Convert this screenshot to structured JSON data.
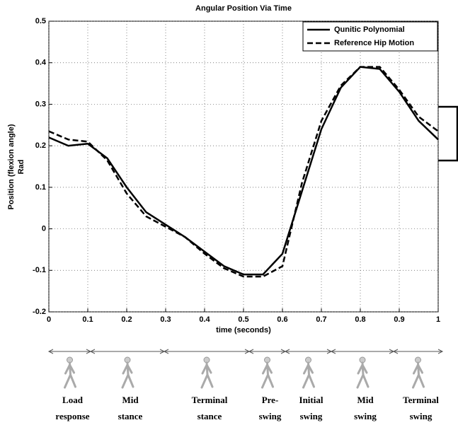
{
  "chart_data": {
    "type": "line",
    "title": "Angular Position Via Time",
    "xlabel": "time (seconds)",
    "ylabel": [
      "Position (flexion angle)",
      "Rad"
    ],
    "x": [
      0,
      0.05,
      0.1,
      0.15,
      0.2,
      0.25,
      0.3,
      0.35,
      0.4,
      0.45,
      0.5,
      0.55,
      0.6,
      0.65,
      0.7,
      0.75,
      0.8,
      0.85,
      0.9,
      0.95,
      1
    ],
    "series": [
      {
        "name": "Qunitic Polynomial",
        "color": "#000000",
        "dash": "solid",
        "values": [
          0.22,
          0.2,
          0.205,
          0.17,
          0.1,
          0.04,
          0.01,
          -0.02,
          -0.055,
          -0.09,
          -0.11,
          -0.11,
          -0.06,
          0.09,
          0.24,
          0.34,
          0.39,
          0.385,
          0.33,
          0.26,
          0.215
        ]
      },
      {
        "name": "Reference Hip Motion",
        "color": "#000000",
        "dash": "dashed",
        "values": [
          0.235,
          0.215,
          0.21,
          0.165,
          0.085,
          0.03,
          0.005,
          -0.02,
          -0.06,
          -0.095,
          -0.115,
          -0.115,
          -0.09,
          0.11,
          0.26,
          0.345,
          0.39,
          0.39,
          0.335,
          0.27,
          0.235
        ]
      }
    ],
    "xlim": [
      0,
      1
    ],
    "ylim": [
      -0.2,
      0.5
    ],
    "xticks": [
      0,
      0.1,
      0.2,
      0.3,
      0.4,
      0.5,
      0.6,
      0.7,
      0.8,
      0.9,
      1
    ],
    "yticks": [
      -0.2,
      -0.1,
      0,
      0.1,
      0.2,
      0.3,
      0.4,
      0.5
    ],
    "grid": true,
    "legend": "upper right"
  },
  "gait_phases": [
    [
      "Load",
      "response"
    ],
    [
      "Mid",
      "stance"
    ],
    [
      "Terminal",
      "stance"
    ],
    [
      "Pre-",
      "swing"
    ],
    [
      "Initial",
      "swing"
    ],
    [
      "Mid",
      "swing"
    ],
    [
      "Terminal",
      "swing"
    ]
  ]
}
